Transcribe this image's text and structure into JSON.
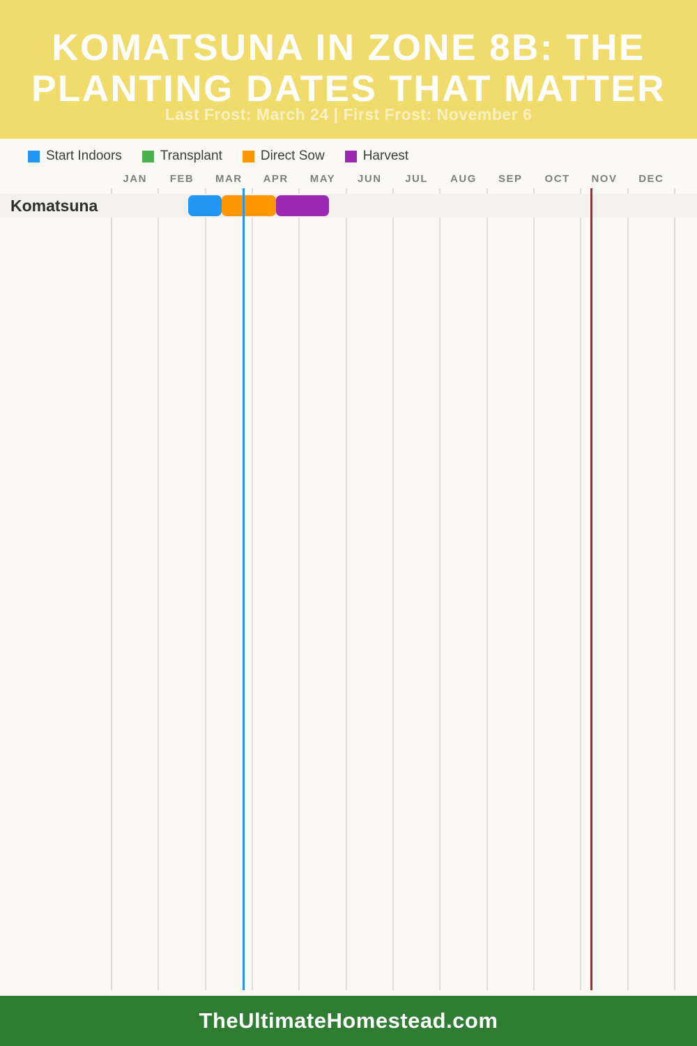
{
  "header": {
    "title_line1": "KOMATSUNA IN ZONE 8B: THE",
    "title_line2": "PLANTING DATES THAT MATTER",
    "subtitle": "Last Frost: March 24 | First Frost: November 6",
    "background_color": "#F0DC6C"
  },
  "footer": {
    "site": "TheUltimateHomestead.com",
    "background_color": "#2E7D33"
  },
  "chart_data": {
    "type": "bar",
    "orientation": "horizontal-gantt",
    "title": "Komatsuna in Zone 8B: The Planting Dates That Matter",
    "grid": true,
    "legend_position": "top-left",
    "legend": [
      {
        "label": "Start Indoors",
        "color": "#2196F3"
      },
      {
        "label": "Transplant",
        "color": "#4CAF50"
      },
      {
        "label": "Direct Sow",
        "color": "#FF9800"
      },
      {
        "label": "Harvest",
        "color": "#9C27B0"
      }
    ],
    "x_axis": {
      "tick_labels": [
        "JAN",
        "FEB",
        "MAR",
        "APR",
        "MAY",
        "JUN",
        "JUL",
        "AUG",
        "SEP",
        "OCT",
        "NOV",
        "DEC"
      ],
      "range_months": [
        0,
        12
      ]
    },
    "rows": [
      {
        "label": "Komatsuna",
        "segments": [
          {
            "name": "Start Indoors",
            "color": "#2196F3",
            "start_date": "Feb 19",
            "end_date": "Mar 11",
            "start_month_frac": 1.64,
            "end_month_frac": 2.35
          },
          {
            "name": "Direct Sow",
            "color": "#FF9800",
            "start_date": "Mar 11",
            "end_date": "Apr 15",
            "start_month_frac": 2.35,
            "end_month_frac": 3.5
          },
          {
            "name": "Harvest",
            "color": "#9C27B0",
            "start_date": "Apr 15",
            "end_date": "May 19",
            "start_month_frac": 3.5,
            "end_month_frac": 4.63
          }
        ]
      }
    ],
    "markers": [
      {
        "name": "Last Frost",
        "date": "March 24",
        "color": "#2196F3",
        "month_frac": 2.82
      },
      {
        "name": "First Frost",
        "date": "November 6",
        "color": "#B22525",
        "month_frac": 10.23
      }
    ]
  }
}
